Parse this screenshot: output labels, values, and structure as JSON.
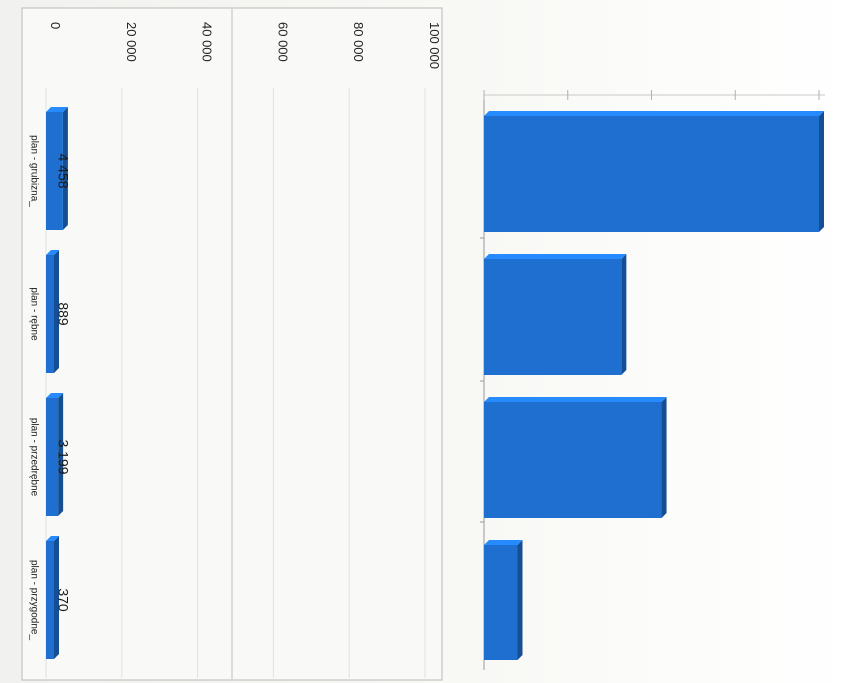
{
  "chart_data": [
    {
      "type": "bar",
      "orientation": "horizontal",
      "categories": [
        "plan - grubizna_",
        "plan - rębne",
        "plan - przedrębne",
        "plan - przygodne_"
      ],
      "values": [
        4458,
        889,
        3199,
        370
      ],
      "data_labels": [
        "4 458",
        "889",
        "3 199",
        "370"
      ],
      "value_axis": {
        "ticks": [
          0,
          20000,
          40000,
          60000,
          80000,
          100000
        ],
        "tick_labels": [
          "0",
          "20 000",
          "40 000",
          "60 000",
          "80 000",
          "100 000"
        ],
        "range": [
          0,
          100000
        ]
      },
      "bar_color": "#1e6fd0",
      "grid": true
    },
    {
      "type": "bar",
      "orientation": "horizontal",
      "values": [
        100,
        41,
        53,
        10
      ],
      "bar_color": "#1e6fd0",
      "grid": true
    }
  ]
}
